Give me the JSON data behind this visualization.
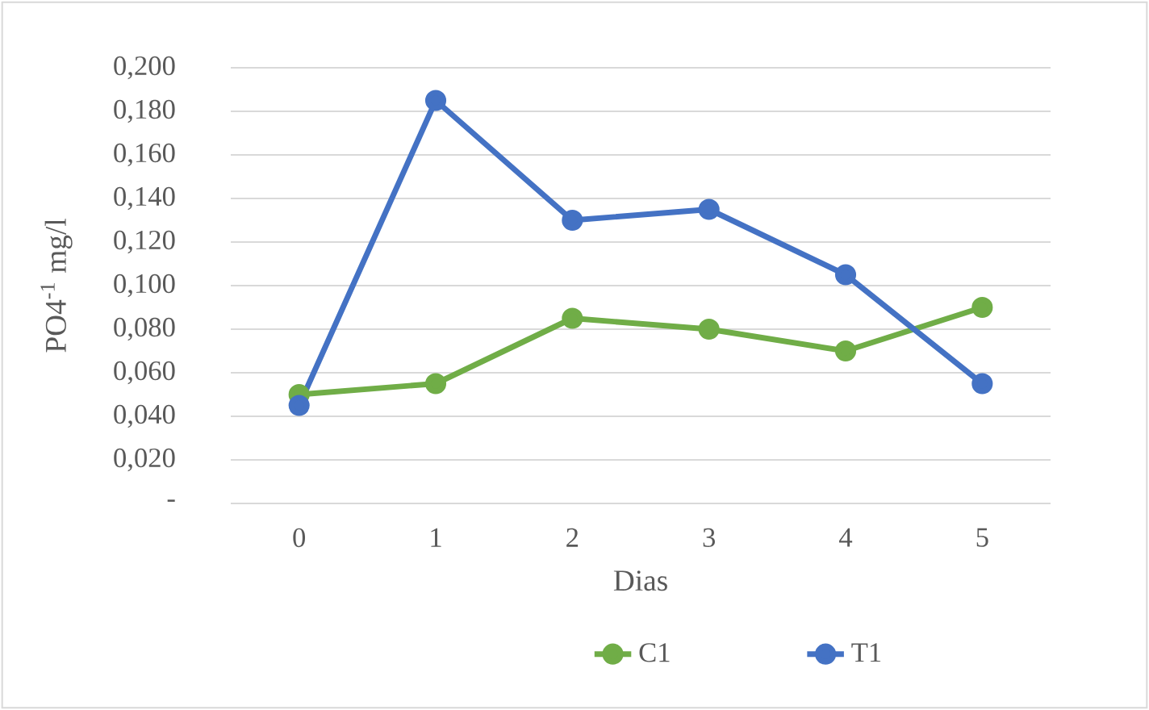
{
  "chart_data": {
    "type": "line",
    "xlabel": "Dias",
    "ylabel": "PO4$^{-1}$ mg/l",
    "categories": [
      "0",
      "1",
      "2",
      "3",
      "4",
      "5"
    ],
    "series": [
      {
        "name": "C1",
        "color": "#70ad47",
        "values": [
          0.05,
          0.055,
          0.085,
          0.08,
          0.07,
          0.09
        ]
      },
      {
        "name": "T1",
        "color": "#4472c4",
        "values": [
          0.045,
          0.185,
          0.13,
          0.135,
          0.105,
          0.055
        ]
      }
    ],
    "ylim": [
      0,
      0.2
    ],
    "yticks": [
      {
        "value": 0,
        "label": "-"
      },
      {
        "value": 0.02,
        "label": "0,020"
      },
      {
        "value": 0.04,
        "label": "0,040"
      },
      {
        "value": 0.06,
        "label": "0,060"
      },
      {
        "value": 0.08,
        "label": "0,080"
      },
      {
        "value": 0.1,
        "label": "0,100"
      },
      {
        "value": 0.12,
        "label": "0,120"
      },
      {
        "value": 0.14,
        "label": "0,140"
      },
      {
        "value": 0.16,
        "label": "0,160"
      },
      {
        "value": 0.18,
        "label": "0,180"
      },
      {
        "value": 0.2,
        "label": "0,200"
      }
    ],
    "grid": "y",
    "legend": "bottom",
    "marker": "circle",
    "line_style": "solid"
  }
}
